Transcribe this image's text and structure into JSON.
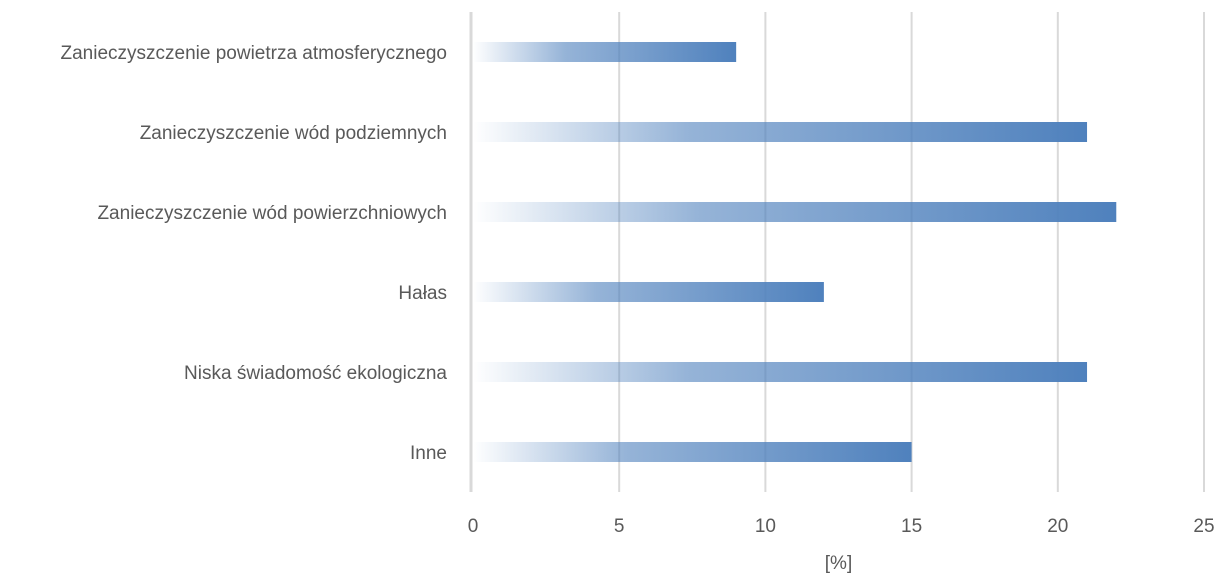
{
  "chart_data": {
    "type": "bar",
    "orientation": "horizontal",
    "categories": [
      "Zanieczyszczenie powietrza atmosferycznego",
      "Zanieczyszczenie wód podziemnych",
      "Zanieczyszczenie wód powierzchniowych",
      "Hałas",
      "Niska świadomość ekologiczna",
      "Inne"
    ],
    "values": [
      9,
      21,
      22,
      12,
      21,
      15
    ],
    "xlabel": "[%]",
    "ylabel": "",
    "xlim": [
      0,
      25
    ],
    "xticks": [
      0,
      5,
      10,
      15,
      20,
      25
    ],
    "grid": true,
    "bar_color": "#4f81bd"
  }
}
